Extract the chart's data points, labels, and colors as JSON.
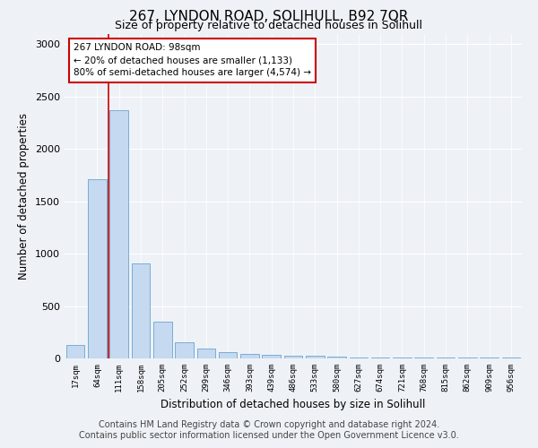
{
  "title": "267, LYNDON ROAD, SOLIHULL, B92 7QR",
  "subtitle": "Size of property relative to detached houses in Solihull",
  "xlabel": "Distribution of detached houses by size in Solihull",
  "ylabel": "Number of detached properties",
  "categories": [
    "17sqm",
    "64sqm",
    "111sqm",
    "158sqm",
    "205sqm",
    "252sqm",
    "299sqm",
    "346sqm",
    "393sqm",
    "439sqm",
    "486sqm",
    "533sqm",
    "580sqm",
    "627sqm",
    "674sqm",
    "721sqm",
    "768sqm",
    "815sqm",
    "862sqm",
    "909sqm",
    "956sqm"
  ],
  "values": [
    130,
    1710,
    2370,
    910,
    350,
    155,
    90,
    60,
    40,
    35,
    25,
    25,
    20,
    5,
    5,
    5,
    5,
    5,
    5,
    5,
    5
  ],
  "bar_color": "#c5d9f0",
  "bar_edgecolor": "#7aadd4",
  "vline_color": "#cc0000",
  "annotation_text": "267 LYNDON ROAD: 98sqm\n← 20% of detached houses are smaller (1,133)\n80% of semi-detached houses are larger (4,574) →",
  "annotation_box_facecolor": "#ffffff",
  "annotation_box_edgecolor": "#cc0000",
  "ylim": [
    0,
    3100
  ],
  "yticks": [
    0,
    500,
    1000,
    1500,
    2000,
    2500,
    3000
  ],
  "footer_line1": "Contains HM Land Registry data © Crown copyright and database right 2024.",
  "footer_line2": "Contains public sector information licensed under the Open Government Licence v3.0.",
  "background_color": "#eef2f7",
  "plot_background_color": "#eef2f7",
  "grid_color": "#ffffff",
  "title_fontsize": 11,
  "subtitle_fontsize": 9,
  "footer_fontsize": 7
}
